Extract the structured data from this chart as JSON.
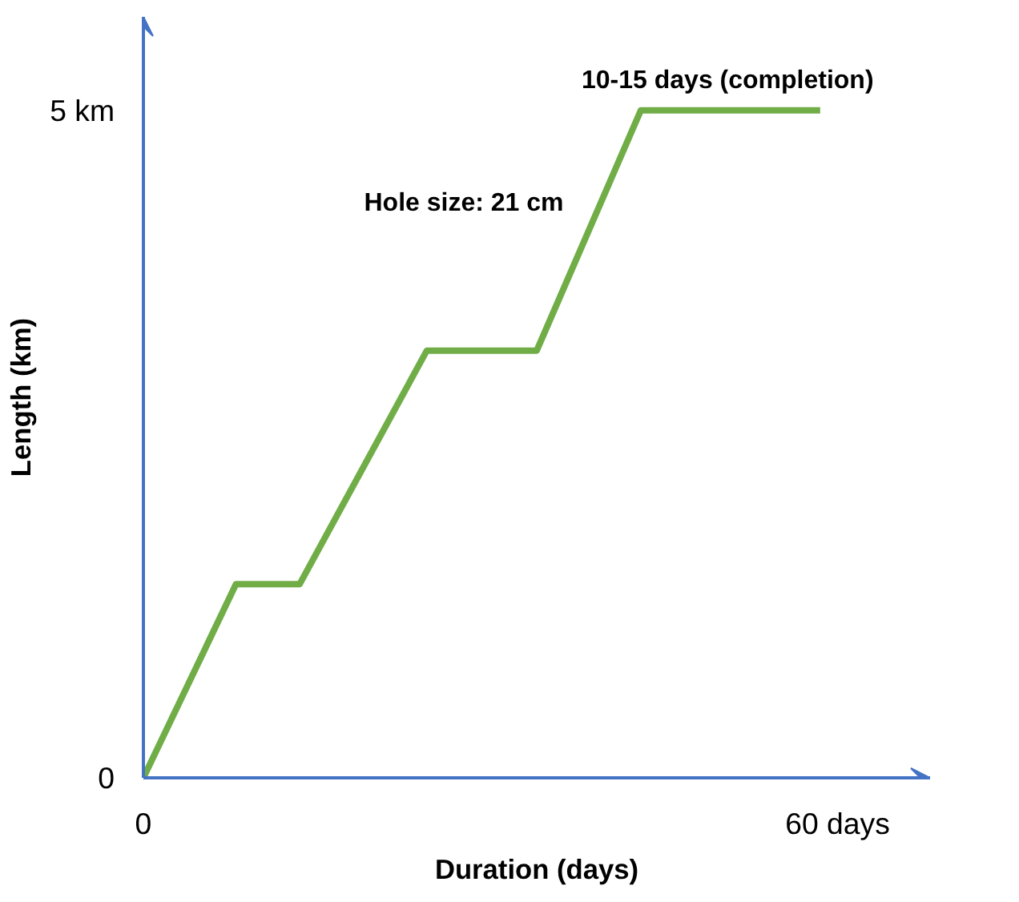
{
  "chart_data": {
    "type": "line",
    "xlabel": "Duration (days)",
    "ylabel": "Length (km)",
    "x": [
      0,
      8,
      13.5,
      24.5,
      34,
      43,
      58.5
    ],
    "series": [
      {
        "color": "#70ad47",
        "values": [
          0,
          1.45,
          1.45,
          3.2,
          3.2,
          5,
          5
        ]
      }
    ],
    "xlim": [
      0,
      68
    ],
    "ylim": [
      0,
      5.7
    ],
    "xticks": [
      0,
      {
        "value": 60,
        "label": "60 days"
      }
    ],
    "yticks": [
      0,
      {
        "value": 5,
        "label": "5 km"
      }
    ],
    "annotations": [
      {
        "text": "10-15 days (completion)",
        "x": 50.5,
        "y": 5
      },
      "Hole size: 21 cm"
    ],
    "marker": "none",
    "line_style": "solid"
  }
}
